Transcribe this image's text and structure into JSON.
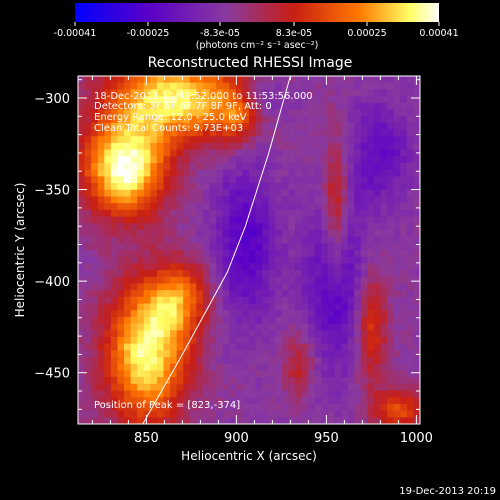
{
  "colorbar": {
    "tick_labels": [
      "-0.00041",
      "-0.00025",
      "-8.3e-05",
      "8.3e-05",
      "0.00025",
      "0.00041"
    ],
    "unit_label": "(photons cm⁻² s⁻¹ asec⁻²)"
  },
  "annotations": {
    "time_range": "18-Dec-2013 11:49:52.000 to 11:53:56.000",
    "detectors": "Detectors: 3F 5F 6F 7F 8F 9F, Att: 0",
    "energy": "Energy Range: 12.0 - 25.0 keV",
    "method": "Clean      Total Counts: 9.73E+03",
    "peak": "Position of Peak = [823,-374]"
  },
  "footer": {
    "timestamp": "19-Dec-2013 20:19"
  },
  "chart_data": {
    "type": "heatmap",
    "title": "Reconstructed RHESSI Image",
    "xlabel": "Heliocentric X (arcsec)",
    "ylabel": "Heliocentric Y (arcsec)",
    "xlim": [
      812,
      1002
    ],
    "ylim": [
      -478,
      -288
    ],
    "xticks": [
      850,
      900,
      950,
      1000
    ],
    "yticks": [
      -300,
      -350,
      -400,
      -450
    ],
    "xtick_labels": [
      "850",
      "900",
      "950",
      "1000"
    ],
    "ytick_labels": [
      "−300",
      "−350",
      "−400",
      "−450"
    ],
    "colorbar_range": [
      -0.00041,
      0.00041
    ],
    "colormap": [
      "#0000ff",
      "#5a00c8",
      "#8a3a9e",
      "#c81e14",
      "#ff7800",
      "#ffff64",
      "#ffffff"
    ],
    "limb_curve": [
      [
        848,
        -478
      ],
      [
        870,
        -440
      ],
      [
        895,
        -395
      ],
      [
        905,
        -370
      ],
      [
        918,
        -330
      ],
      [
        930,
        -288
      ]
    ],
    "grid_size": 52,
    "blobs": [
      {
        "x": 838,
        "y": -338,
        "sx": 16,
        "sy": 18,
        "a": 1.15
      },
      {
        "x": 866,
        "y": -300,
        "sx": 26,
        "sy": 16,
        "a": 1.0
      },
      {
        "x": 850,
        "y": -440,
        "sx": 16,
        "sy": 26,
        "a": 1.05
      },
      {
        "x": 868,
        "y": -410,
        "sx": 12,
        "sy": 14,
        "a": 0.6
      },
      {
        "x": 900,
        "y": -310,
        "sx": 8,
        "sy": 10,
        "a": 0.45
      },
      {
        "x": 955,
        "y": -360,
        "sx": 5,
        "sy": 26,
        "a": 0.5
      },
      {
        "x": 975,
        "y": -425,
        "sx": 6,
        "sy": 22,
        "a": 0.5
      },
      {
        "x": 990,
        "y": -470,
        "sx": 10,
        "sy": 8,
        "a": 0.55
      },
      {
        "x": 935,
        "y": -445,
        "sx": 6,
        "sy": 12,
        "a": 0.35
      },
      {
        "x": 905,
        "y": -380,
        "sx": 12,
        "sy": 30,
        "a": -0.45
      },
      {
        "x": 955,
        "y": -400,
        "sx": 12,
        "sy": 35,
        "a": -0.45
      },
      {
        "x": 980,
        "y": -330,
        "sx": 12,
        "sy": 20,
        "a": -0.35
      },
      {
        "x": 915,
        "y": -300,
        "sx": 10,
        "sy": 8,
        "a": -0.25
      }
    ]
  }
}
